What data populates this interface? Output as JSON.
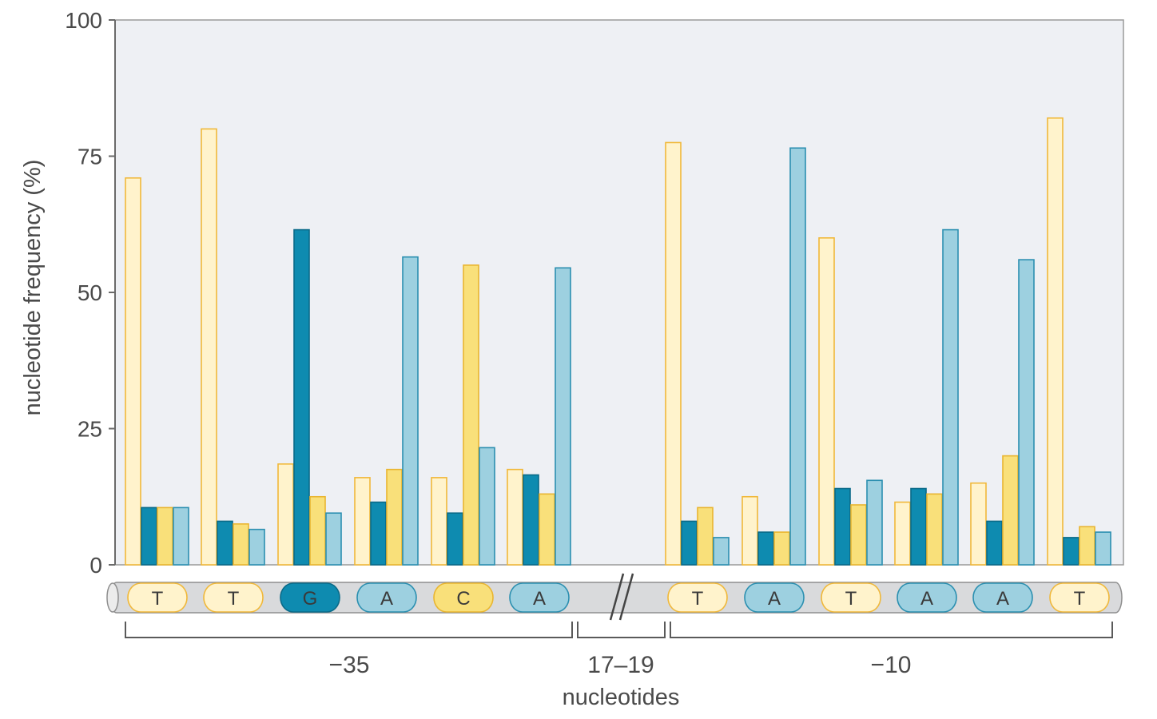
{
  "chart_data": {
    "type": "bar",
    "ylabel": "nucleotide frequency (%)",
    "xlabel": "nucleotides",
    "ylim": [
      0,
      100
    ],
    "yticks": [
      "0",
      "25",
      "50",
      "75",
      "100"
    ],
    "positions": [
      {
        "letter": "T",
        "values": [
          71,
          10.5,
          10.5,
          10.5
        ]
      },
      {
        "letter": "T",
        "values": [
          80,
          8,
          7.5,
          6.5
        ]
      },
      {
        "letter": "G",
        "values": [
          18.5,
          61.5,
          12.5,
          9.5
        ]
      },
      {
        "letter": "A",
        "values": [
          16,
          11.5,
          17.5,
          56.5
        ]
      },
      {
        "letter": "C",
        "values": [
          16,
          9.5,
          55,
          21.5
        ]
      },
      {
        "letter": "A",
        "values": [
          17.5,
          16.5,
          13,
          54.5
        ]
      },
      {
        "letter": "T",
        "values": [
          77.5,
          8,
          10.5,
          5
        ]
      },
      {
        "letter": "A",
        "values": [
          12.5,
          6,
          6,
          76.5
        ]
      },
      {
        "letter": "T",
        "values": [
          60,
          14,
          11,
          15.5
        ]
      },
      {
        "letter": "A",
        "values": [
          11.5,
          14,
          13,
          61.5
        ]
      },
      {
        "letter": "A",
        "values": [
          15,
          8,
          20,
          56
        ]
      },
      {
        "letter": "T",
        "values": [
          82,
          5,
          7,
          6
        ]
      }
    ],
    "series_colors": {
      "T": {
        "fill": "#fff3cc",
        "stroke": "#f0b83a"
      },
      "G": {
        "fill": "#0e8bb0",
        "stroke": "#0a6a88"
      },
      "C": {
        "fill": "#f9e07a",
        "stroke": "#e9b530"
      },
      "A": {
        "fill": "#9dd0e0",
        "stroke": "#2b8fb0"
      }
    },
    "groups": [
      "−35",
      "17–19",
      "−10"
    ],
    "grid": false,
    "legend": "none",
    "background": "#eef0f4"
  }
}
